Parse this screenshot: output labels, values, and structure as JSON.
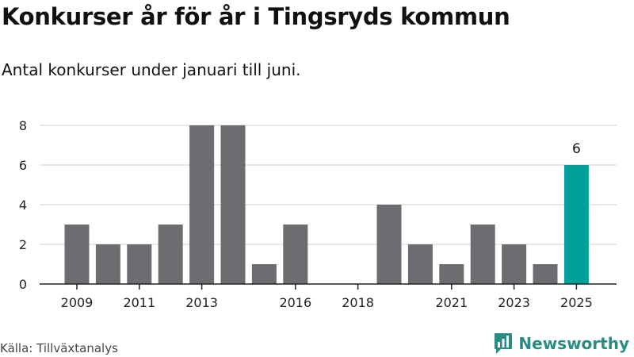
{
  "title": "Konkurser år för år i Tingsryds kommun",
  "subtitle": "Antal konkurser under januari till juni.",
  "source": "Källa: Tillväxtanalys",
  "brand": {
    "name": "Newsworthy",
    "logo_icon": "newsworthy-bar-chart-logo-icon"
  },
  "colors": {
    "bar": "#6d6c71",
    "highlight": "#00a19a",
    "grid": "#d9d9d9",
    "axis": "#222222"
  },
  "chart_data": {
    "type": "bar",
    "title": "Konkurser år för år i Tingsryds kommun",
    "subtitle": "Antal konkurser under januari till juni.",
    "xlabel": "",
    "ylabel": "",
    "categories": [
      2009,
      2010,
      2011,
      2012,
      2013,
      2014,
      2015,
      2016,
      2017,
      2018,
      2019,
      2020,
      2021,
      2022,
      2023,
      2024,
      2025
    ],
    "values": [
      3,
      2,
      2,
      3,
      8,
      8,
      1,
      3,
      0,
      0,
      4,
      2,
      1,
      3,
      2,
      1,
      6
    ],
    "highlight_category": 2025,
    "highlight_label": "6",
    "ylim": [
      0,
      8
    ],
    "yticks": [
      0,
      2,
      4,
      6,
      8
    ],
    "xtick_labels": [
      "2009",
      "2011",
      "2013",
      "2016",
      "2018",
      "2021",
      "2023",
      "2025"
    ],
    "grid": true,
    "legend": "none"
  }
}
